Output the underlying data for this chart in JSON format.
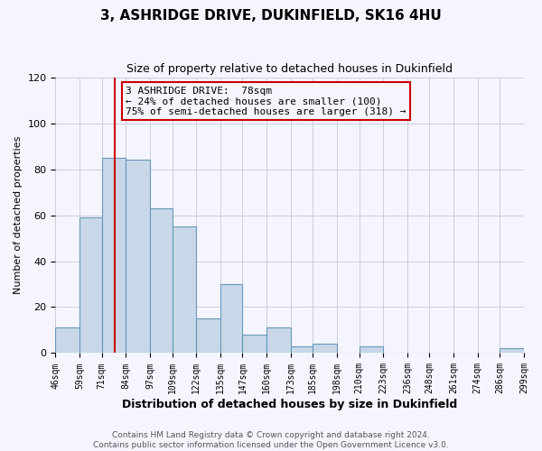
{
  "title": "3, ASHRIDGE DRIVE, DUKINFIELD, SK16 4HU",
  "subtitle": "Size of property relative to detached houses in Dukinfield",
  "xlabel": "Distribution of detached houses by size in Dukinfield",
  "ylabel": "Number of detached properties",
  "bin_labels": [
    "46sqm",
    "59sqm",
    "71sqm",
    "84sqm",
    "97sqm",
    "109sqm",
    "122sqm",
    "135sqm",
    "147sqm",
    "160sqm",
    "173sqm",
    "185sqm",
    "198sqm",
    "210sqm",
    "223sqm",
    "236sqm",
    "248sqm",
    "261sqm",
    "274sqm",
    "286sqm",
    "299sqm"
  ],
  "bin_edges": [
    46,
    59,
    71,
    84,
    97,
    109,
    122,
    135,
    147,
    160,
    173,
    185,
    198,
    210,
    223,
    236,
    248,
    261,
    274,
    286,
    299
  ],
  "bar_values": [
    11,
    59,
    85,
    84,
    63,
    55,
    15,
    30,
    8,
    11,
    3,
    4,
    0,
    3,
    0,
    0,
    0,
    0,
    0,
    2
  ],
  "bar_facecolor": "#c8d8e8",
  "bar_edgecolor": "#6699bb",
  "property_line_x": 78,
  "property_line_color": "#cc0000",
  "ylim": [
    0,
    120
  ],
  "annotation_text": "3 ASHRIDGE DRIVE:  78sqm\n← 24% of detached houses are smaller (100)\n75% of semi-detached houses are larger (318) →",
  "annotation_box_edgecolor": "#cc0000",
  "footer_line1": "Contains HM Land Registry data © Crown copyright and database right 2024.",
  "footer_line2": "Contains public sector information licensed under the Open Government Licence v3.0.",
  "bg_color": "#f5f5ff",
  "title_fontsize": 11,
  "subtitle_fontsize": 9,
  "ylabel_fontsize": 8,
  "xlabel_fontsize": 9,
  "tick_fontsize": 7,
  "annotation_fontsize": 8,
  "footer_fontsize": 6.5
}
